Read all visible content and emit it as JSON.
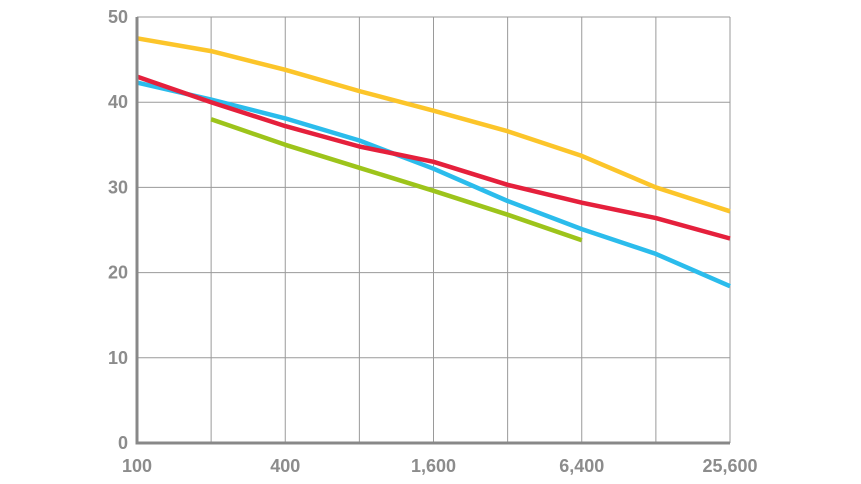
{
  "chart_data": {
    "type": "line",
    "title": "",
    "xlabel": "",
    "ylabel": "",
    "x_scale": "log2",
    "xlim": [
      100,
      25600
    ],
    "ylim": [
      0,
      50
    ],
    "y_ticks": [
      0,
      10,
      20,
      30,
      40,
      50
    ],
    "y_tick_labels": [
      "0",
      "10",
      "20",
      "30",
      "40",
      "50"
    ],
    "x_gridlines": [
      100,
      200,
      400,
      800,
      1600,
      3200,
      6400,
      12800,
      25600
    ],
    "x_ticks": [
      100,
      400,
      1600,
      6400,
      25600
    ],
    "x_tick_labels": [
      "100",
      "400",
      "1,600",
      "6,400",
      "25,600"
    ],
    "grid": true,
    "legend": "none",
    "series": [
      {
        "color": "#fcc52a",
        "points": [
          [
            100,
            47.5
          ],
          [
            200,
            46.0
          ],
          [
            400,
            43.8
          ],
          [
            800,
            41.3
          ],
          [
            1600,
            39.0
          ],
          [
            3200,
            36.6
          ],
          [
            6400,
            33.7
          ],
          [
            12800,
            30.0
          ],
          [
            25600,
            27.2
          ]
        ]
      },
      {
        "color": "#2bbcec",
        "points": [
          [
            100,
            42.3
          ],
          [
            200,
            40.3
          ],
          [
            400,
            38.1
          ],
          [
            800,
            35.5
          ],
          [
            1600,
            32.2
          ],
          [
            3200,
            28.4
          ],
          [
            6400,
            25.1
          ],
          [
            12800,
            22.2
          ],
          [
            25600,
            18.4
          ]
        ]
      },
      {
        "color": "#e5203c",
        "points": [
          [
            100,
            43.0
          ],
          [
            200,
            40.0
          ],
          [
            400,
            37.2
          ],
          [
            800,
            34.8
          ],
          [
            1600,
            33.0
          ],
          [
            3200,
            30.3
          ],
          [
            6400,
            28.2
          ],
          [
            12800,
            26.4
          ],
          [
            25600,
            24.0
          ]
        ]
      },
      {
        "color": "#9dc41b",
        "points": [
          [
            200,
            38.0
          ],
          [
            400,
            35.0
          ],
          [
            800,
            32.3
          ],
          [
            1600,
            29.6
          ],
          [
            3200,
            26.8
          ],
          [
            6400,
            23.8
          ]
        ]
      }
    ]
  }
}
